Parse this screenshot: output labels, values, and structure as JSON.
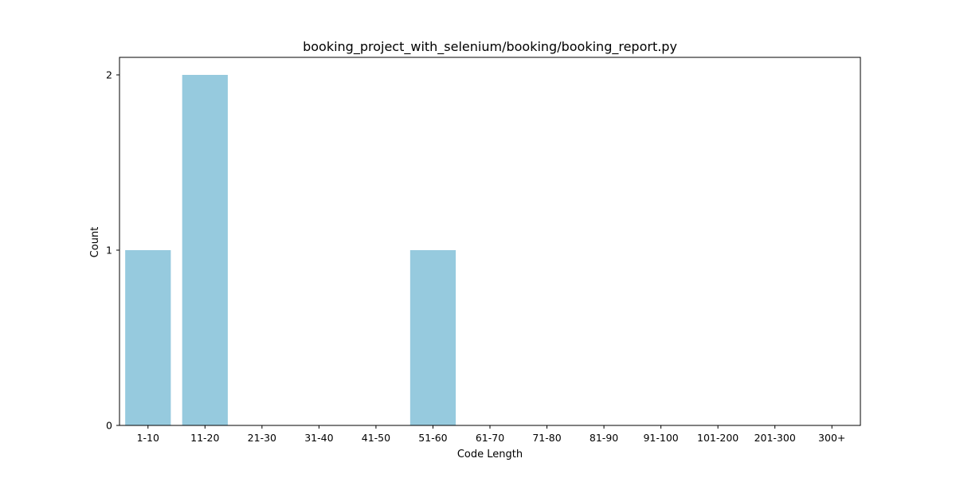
{
  "chart_data": {
    "type": "bar",
    "title": "booking_project_with_selenium/booking/booking_report.py",
    "xlabel": "Code Length",
    "ylabel": "Count",
    "categories": [
      "1-10",
      "11-20",
      "21-30",
      "31-40",
      "41-50",
      "51-60",
      "61-70",
      "71-80",
      "81-90",
      "91-100",
      "101-200",
      "201-300",
      "300+"
    ],
    "values": [
      1,
      2,
      0,
      0,
      0,
      1,
      0,
      0,
      0,
      0,
      0,
      0,
      0
    ],
    "ylim": [
      0,
      2.1
    ],
    "yticks": [
      0,
      1,
      2
    ],
    "grid": false,
    "legend": "none",
    "bar_color": "#96cade",
    "axis_color": "#000000"
  }
}
